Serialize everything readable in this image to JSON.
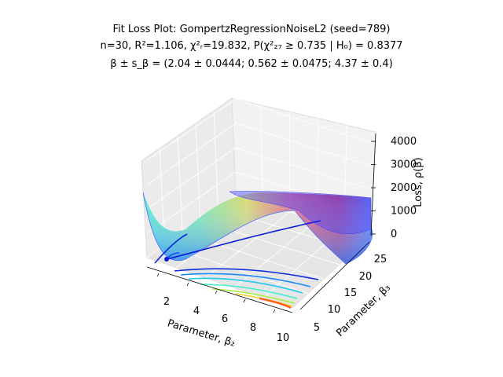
{
  "chart_data": {
    "type": "surface3d",
    "title": "Fit Loss Plot: GompertzRegressionNoiseL2 (seed=789)",
    "subtitle_line2": "n=30, R²=1.106, χ²ᵣ=19.832, P(χ²₂₇ ≥ 0.735 | H₀) = 0.8377",
    "subtitle_line3": "β ± s_β = (2.04 ± 0.0444; 0.562 ± 0.0475; 4.37 ± 0.4)",
    "xlabel": "Parameter, β₂",
    "ylabel": "Parameter, β₃",
    "zlabel": "Loss, ρ(β)",
    "x_ticks": [
      "2",
      "4",
      "6",
      "8",
      "10"
    ],
    "y_ticks": [
      "5",
      "10",
      "15",
      "20",
      "25"
    ],
    "z_ticks": [
      "0",
      "1000",
      "2000",
      "3000",
      "4000"
    ],
    "xlim": [
      0.5,
      10
    ],
    "ylim": [
      3,
      26
    ],
    "zlim": [
      0,
      4200
    ],
    "fit_point": {
      "beta2": 0.562,
      "beta3": 4.37,
      "loss": 0
    },
    "colormap": "jet",
    "grid": true
  }
}
